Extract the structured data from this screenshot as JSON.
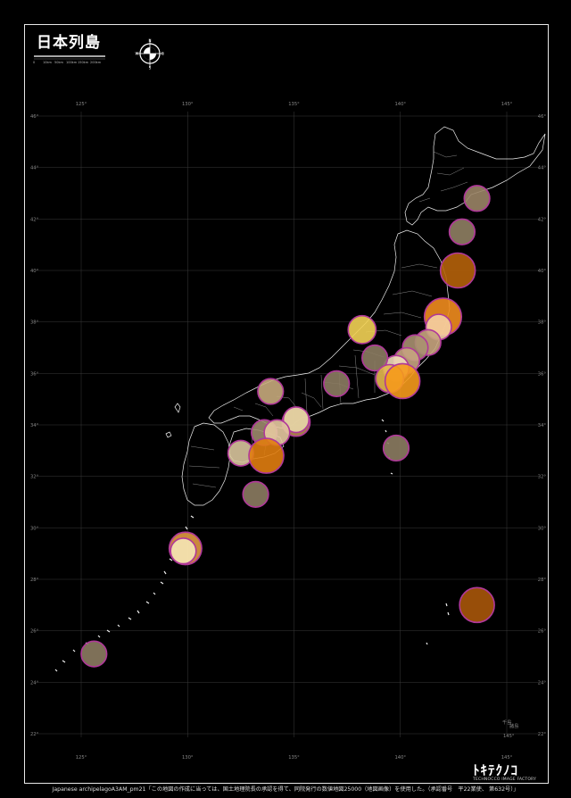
{
  "title": "日本列島",
  "footer": "Japanese archipelagoA3AM_pm21「この地図の作成に当っては、国土地理院長の承認を得て、同院発行の数値地図25000（地図画像）を使用した。（承認番号　平22業使、 第632号）」",
  "logo": {
    "main": "ﾄｷﾃｸﾉｺ",
    "sub": "TECHNOCCO IMAGE FACTORY"
  },
  "compass": {
    "n": "N",
    "s": "S",
    "e": "E",
    "w": "W"
  },
  "scale_labels": [
    "0",
    "10km",
    "50km",
    "100km",
    "150km",
    "200km"
  ],
  "lon_ticks": [
    "125°",
    "130°",
    "135°",
    "140°",
    "145°"
  ],
  "lat_ticks": [
    "46°",
    "44°",
    "42°",
    "40°",
    "38°",
    "36°",
    "34°",
    "32°",
    "30°",
    "28°",
    "26°",
    "24°",
    "22°"
  ],
  "inset_labels": [
    "145°",
    "千島",
    "諸島"
  ],
  "markers": [
    {
      "lon": 143.6,
      "lat": 42.8,
      "size": 0.55,
      "color": "#9a8466"
    },
    {
      "lon": 142.9,
      "lat": 41.5,
      "size": 0.55,
      "color": "#8f7f63"
    },
    {
      "lon": 142.7,
      "lat": 40.0,
      "size": 0.75,
      "color": "#b5620a"
    },
    {
      "lon": 142.0,
      "lat": 38.2,
      "size": 0.8,
      "color": "#f08c1e"
    },
    {
      "lon": 141.8,
      "lat": 37.8,
      "size": 0.55,
      "color": "#f5cfa3"
    },
    {
      "lon": 141.3,
      "lat": 37.2,
      "size": 0.55,
      "color": "#c8a47e"
    },
    {
      "lon": 140.7,
      "lat": 37.0,
      "size": 0.55,
      "color": "#a89070"
    },
    {
      "lon": 140.3,
      "lat": 36.5,
      "size": 0.55,
      "color": "#c7a480"
    },
    {
      "lon": 139.8,
      "lat": 36.2,
      "size": 0.55,
      "color": "#f0d9b8"
    },
    {
      "lon": 138.2,
      "lat": 37.7,
      "size": 0.6,
      "color": "#f2d255"
    },
    {
      "lon": 138.8,
      "lat": 36.6,
      "size": 0.55,
      "color": "#8c7c62"
    },
    {
      "lon": 139.5,
      "lat": 35.8,
      "size": 0.6,
      "color": "#e3b84e"
    },
    {
      "lon": 140.1,
      "lat": 35.7,
      "size": 0.75,
      "color": "#f59a1c"
    },
    {
      "lon": 137.0,
      "lat": 35.6,
      "size": 0.55,
      "color": "#8c7c62"
    },
    {
      "lon": 133.9,
      "lat": 35.3,
      "size": 0.55,
      "color": "#c7aa7c"
    },
    {
      "lon": 135.1,
      "lat": 34.1,
      "size": 0.6,
      "color": "#b58c50"
    },
    {
      "lon": 135.1,
      "lat": 34.2,
      "size": 0.55,
      "color": "#e8d6a8"
    },
    {
      "lon": 133.6,
      "lat": 33.7,
      "size": 0.55,
      "color": "#9c8a6c"
    },
    {
      "lon": 134.2,
      "lat": 33.7,
      "size": 0.55,
      "color": "#e5c9a0"
    },
    {
      "lon": 132.5,
      "lat": 32.9,
      "size": 0.55,
      "color": "#d8c49c"
    },
    {
      "lon": 133.7,
      "lat": 32.8,
      "size": 0.75,
      "color": "#e07d10"
    },
    {
      "lon": 139.8,
      "lat": 33.1,
      "size": 0.55,
      "color": "#8c7c62"
    },
    {
      "lon": 133.2,
      "lat": 31.3,
      "size": 0.55,
      "color": "#8c7c62"
    },
    {
      "lon": 129.9,
      "lat": 29.2,
      "size": 0.7,
      "color": "#e09840"
    },
    {
      "lon": 129.8,
      "lat": 29.1,
      "size": 0.55,
      "color": "#f5e7b6"
    },
    {
      "lon": 143.6,
      "lat": 27.0,
      "size": 0.75,
      "color": "#a8560a"
    },
    {
      "lon": 125.6,
      "lat": 25.1,
      "size": 0.55,
      "color": "#8c7c62"
    }
  ]
}
